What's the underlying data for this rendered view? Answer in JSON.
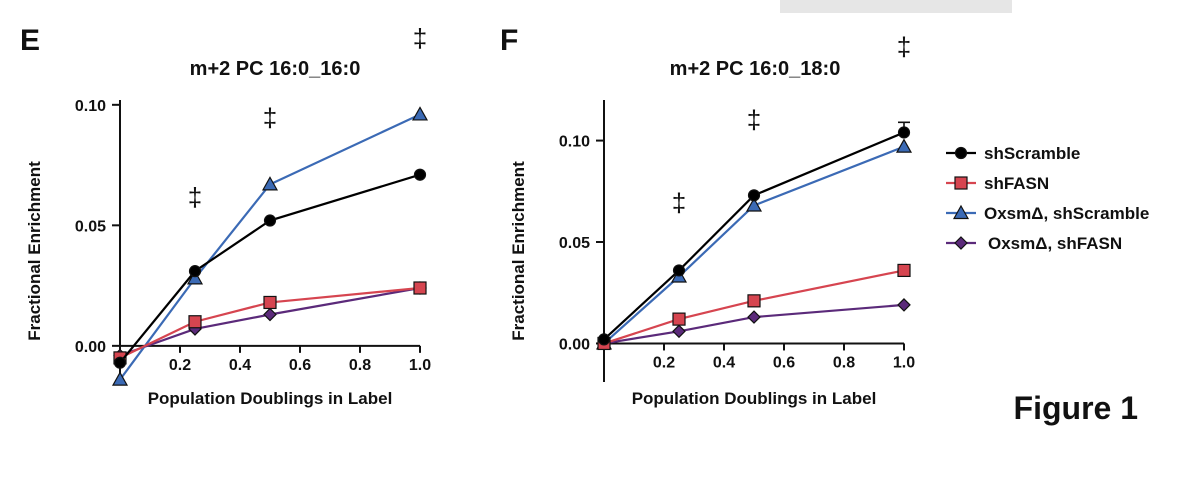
{
  "figure_label": "Figure 1",
  "legend": {
    "entries": [
      {
        "label": "shScramble",
        "color": "#000000",
        "marker": "circle"
      },
      {
        "label": "shFASN",
        "color": "#d64550",
        "marker": "square"
      },
      {
        "label": "OxsmΔ, shScramble",
        "color": "#3b6ab5",
        "marker": "triangle"
      },
      {
        "label": "OxsmΔ, shFASN",
        "color": "#5b2a7a",
        "marker": "diamond"
      }
    ]
  },
  "chart_data": [
    {
      "type": "line",
      "panel": "E",
      "title": "m+2 PC 16:0_16:0",
      "xlabel": "Population Doublings in Label",
      "ylabel": "Fractional Enrichment",
      "xlim": [
        0,
        1.0
      ],
      "ylim": [
        -0.015,
        0.102
      ],
      "x_ticks": [
        0.2,
        0.4,
        0.6,
        0.8,
        1.0
      ],
      "x_tick_labels": [
        "0.2",
        "0.4",
        "0.6",
        "0.8",
        "1.0"
      ],
      "y_ticks": [
        0.0,
        0.05,
        0.1
      ],
      "y_tick_labels": [
        "0.00",
        "0.05",
        "0.10"
      ],
      "x": [
        0,
        0.25,
        0.5,
        1.0
      ],
      "series": [
        {
          "name": "shScramble",
          "values": [
            -0.007,
            0.031,
            0.052,
            0.071
          ]
        },
        {
          "name": "shFASN",
          "values": [
            -0.005,
            0.01,
            0.018,
            0.024
          ]
        },
        {
          "name": "OxsmΔ, shScramble",
          "values": [
            -0.014,
            0.028,
            0.067,
            0.096
          ]
        },
        {
          "name": "OxsmΔ, shFASN",
          "values": [
            -0.004,
            0.007,
            0.013,
            0.024
          ]
        }
      ],
      "annotations": [
        {
          "text": "‡",
          "x": 0.25,
          "y": 0.058
        },
        {
          "text": "‡",
          "x": 0.5,
          "y": 0.091
        },
        {
          "text": "‡",
          "x": 1.0,
          "y": 0.124
        }
      ],
      "grid": false
    },
    {
      "type": "line",
      "panel": "F",
      "title": "m+2 PC 16:0_18:0",
      "xlabel": "Population Doublings in Label",
      "ylabel": "Fractional Enrichment",
      "xlim": [
        0,
        1.0
      ],
      "ylim": [
        -0.019,
        0.12
      ],
      "x_ticks": [
        0.2,
        0.4,
        0.6,
        0.8,
        1.0
      ],
      "x_tick_labels": [
        "0.2",
        "0.4",
        "0.6",
        "0.8",
        "1.0"
      ],
      "y_ticks": [
        0.0,
        0.05,
        0.1
      ],
      "y_tick_labels": [
        "0.00",
        "0.05",
        "0.10"
      ],
      "x": [
        0,
        0.25,
        0.5,
        1.0
      ],
      "series": [
        {
          "name": "shScramble",
          "values": [
            0.002,
            0.036,
            0.073,
            0.104
          ],
          "error": [
            0,
            0,
            0,
            0.005
          ]
        },
        {
          "name": "shFASN",
          "values": [
            0.0,
            0.012,
            0.021,
            0.036
          ]
        },
        {
          "name": "OxsmΔ, shScramble",
          "values": [
            0.0,
            0.033,
            0.068,
            0.097
          ]
        },
        {
          "name": "OxsmΔ, shFASN",
          "values": [
            0.0,
            0.006,
            0.013,
            0.019
          ]
        }
      ],
      "annotations": [
        {
          "text": "‡",
          "x": 0.25,
          "y": 0.065
        },
        {
          "text": "‡",
          "x": 0.5,
          "y": 0.106
        },
        {
          "text": "‡",
          "x": 1.0,
          "y": 0.142
        }
      ],
      "grid": false
    }
  ]
}
